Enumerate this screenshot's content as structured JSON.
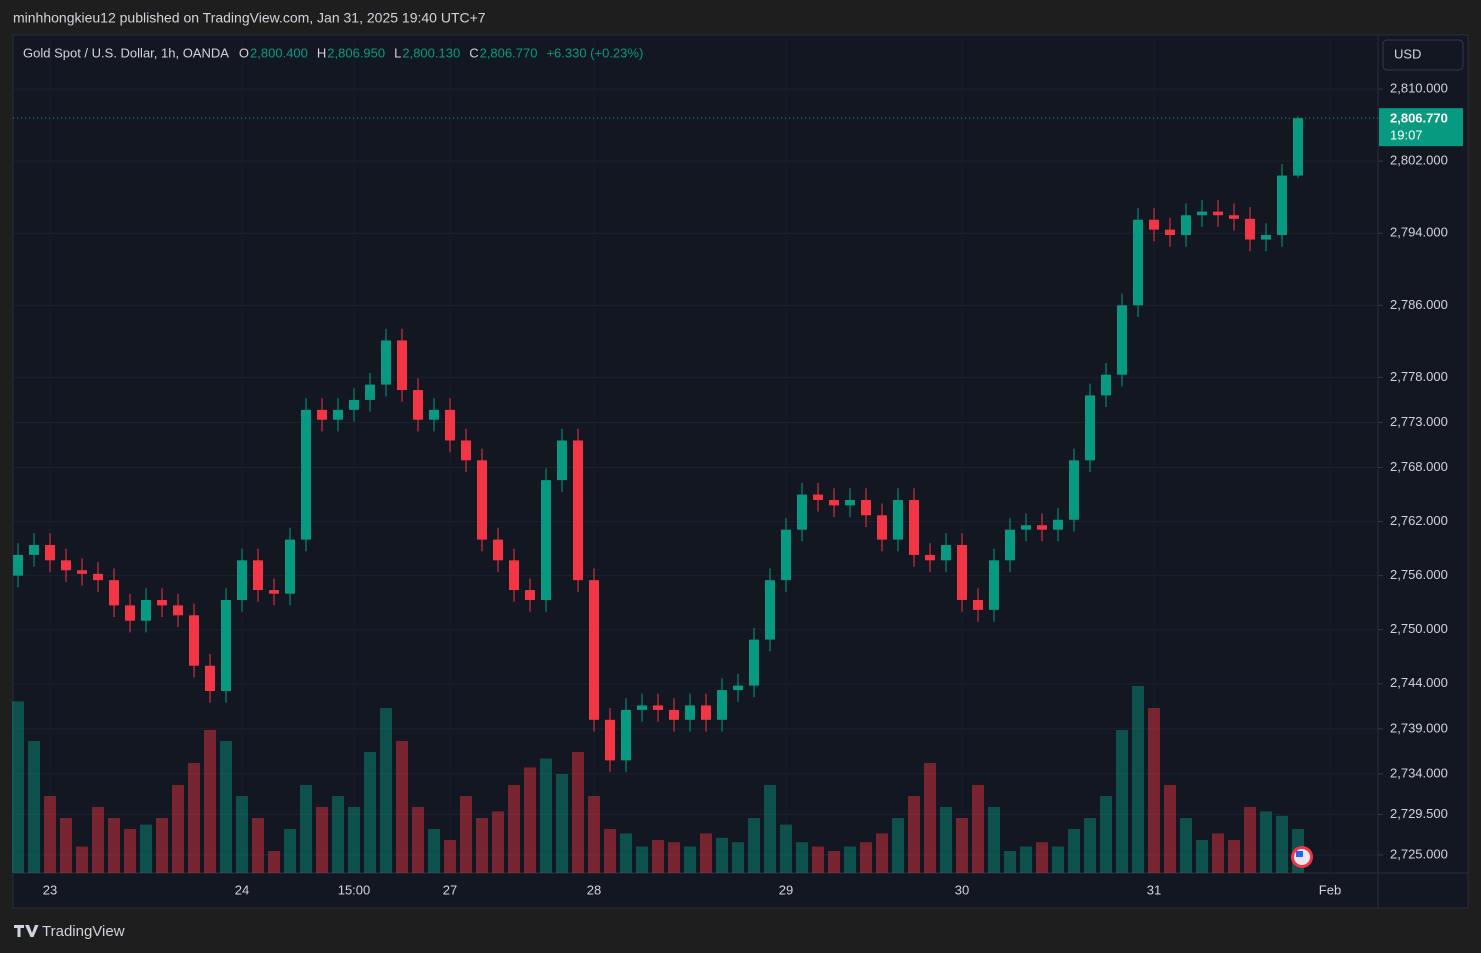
{
  "published_by": "minhhongkieu12 published on TradingView.com, Jan 31, 2025 19:40 UTC+7",
  "brand": "TradingView",
  "chart_data": {
    "type": "candlestick",
    "title": "Gold Spot / U.S. Dollar, 1h, OANDA",
    "ohlc_legend": [
      {
        "key": "O",
        "value": "2,800.400"
      },
      {
        "key": "H",
        "value": "2,806.950"
      },
      {
        "key": "L",
        "value": "2,800.130"
      },
      {
        "key": "C",
        "value": "2,806.770"
      }
    ],
    "change": "+6.330 (+0.23%)",
    "currency": "USD",
    "price_label": "2,806.770",
    "countdown": "19:07",
    "up_color": "#089981",
    "down_color": "#f23645",
    "grid": true,
    "ylim": [
      2723.0,
      2816.0
    ],
    "yticks": [
      {
        "value": 2810,
        "label": "2,810.000"
      },
      {
        "value": 2802,
        "label": "2,802.000"
      },
      {
        "value": 2794,
        "label": "2,794.000"
      },
      {
        "value": 2786,
        "label": "2,786.000"
      },
      {
        "value": 2778,
        "label": "2,778.000"
      },
      {
        "value": 2773,
        "label": "2,773.000"
      },
      {
        "value": 2768,
        "label": "2,768.000"
      },
      {
        "value": 2762,
        "label": "2,762.000"
      },
      {
        "value": 2756,
        "label": "2,756.000"
      },
      {
        "value": 2750,
        "label": "2,750.000"
      },
      {
        "value": 2744,
        "label": "2,744.000"
      },
      {
        "value": 2739,
        "label": "2,739.000"
      },
      {
        "value": 2734,
        "label": "2,734.000"
      },
      {
        "value": 2729.5,
        "label": "2,729.500"
      },
      {
        "value": 2725,
        "label": "2,725.000"
      }
    ],
    "categories": [
      null,
      null,
      "23",
      null,
      null,
      null,
      null,
      null,
      null,
      null,
      null,
      null,
      null,
      null,
      "24",
      null,
      null,
      null,
      null,
      null,
      null,
      "15:00",
      null,
      null,
      null,
      null,
      null,
      "27",
      null,
      null,
      null,
      null,
      null,
      null,
      null,
      null,
      "28",
      null,
      null,
      null,
      null,
      null,
      null,
      null,
      null,
      null,
      null,
      null,
      "29",
      null,
      null,
      null,
      null,
      null,
      null,
      null,
      null,
      null,
      null,
      "30",
      null,
      null,
      null,
      null,
      null,
      null,
      null,
      null,
      null,
      null,
      null,
      "31",
      null,
      null,
      null,
      null,
      null,
      null,
      null,
      null,
      null,
      null,
      "Feb"
    ],
    "open": [
      2756.0,
      2758.3,
      2759.4,
      2757.7,
      2756.6,
      2756.2,
      2755.5,
      2752.7,
      2751.0,
      2753.3,
      2752.7,
      2751.6,
      2746.0,
      2743.2,
      2753.3,
      2757.7,
      2754.4,
      2754.0,
      2760.0,
      2774.4,
      2773.3,
      2774.4,
      2775.5,
      2777.2,
      2782.1,
      2776.6,
      2773.3,
      2774.4,
      2771.0,
      2768.8,
      2760.0,
      2757.7,
      2754.4,
      2753.3,
      2766.6,
      2771.0,
      2755.5,
      2740.0,
      2735.5,
      2741.1,
      2741.6,
      2741.1,
      2740.0,
      2741.6,
      2740.0,
      2743.3,
      2743.8,
      2748.9,
      2755.5,
      2761.1,
      2765.0,
      2764.4,
      2763.8,
      2764.4,
      2762.7,
      2760.0,
      2764.4,
      2758.3,
      2757.7,
      2759.4,
      2753.3,
      2752.2,
      2757.7,
      2761.1,
      2761.6,
      2761.1,
      2762.2,
      2768.8,
      2776.0,
      2778.3,
      2786.0,
      2795.5,
      2794.4,
      2793.8,
      2796.0,
      2796.4,
      2796.0,
      2795.6,
      2793.3,
      2793.8,
      2800.4,
      null,
      null
    ],
    "high": [
      2759.6,
      2760.7,
      2760.7,
      2759.0,
      2757.9,
      2757.5,
      2756.8,
      2754.0,
      2754.6,
      2754.6,
      2754.0,
      2752.9,
      2747.3,
      2754.6,
      2759.0,
      2759.0,
      2755.7,
      2761.3,
      2775.7,
      2775.7,
      2775.7,
      2776.8,
      2778.5,
      2783.4,
      2783.4,
      2777.9,
      2775.7,
      2775.7,
      2772.3,
      2770.1,
      2761.3,
      2759.0,
      2755.7,
      2767.9,
      2772.3,
      2772.3,
      2756.8,
      2741.3,
      2742.4,
      2742.9,
      2742.9,
      2742.4,
      2742.9,
      2742.9,
      2744.6,
      2745.1,
      2750.2,
      2756.8,
      2762.4,
      2766.3,
      2766.3,
      2765.7,
      2765.7,
      2765.7,
      2764.0,
      2765.7,
      2765.7,
      2759.6,
      2760.7,
      2760.7,
      2754.6,
      2759.0,
      2762.4,
      2762.9,
      2762.9,
      2763.5,
      2770.1,
      2777.3,
      2779.6,
      2787.3,
      2796.8,
      2796.8,
      2795.7,
      2797.3,
      2797.7,
      2797.7,
      2797.3,
      2796.9,
      2795.1,
      2801.7,
      2806.95,
      null,
      null
    ],
    "low": [
      2754.7,
      2757.0,
      2756.4,
      2755.3,
      2754.9,
      2754.2,
      2751.4,
      2749.7,
      2749.7,
      2751.4,
      2750.3,
      2744.7,
      2741.9,
      2741.9,
      2752.0,
      2753.1,
      2752.7,
      2752.7,
      2758.7,
      2772.0,
      2772.0,
      2773.1,
      2774.2,
      2775.9,
      2775.3,
      2772.0,
      2772.0,
      2769.7,
      2767.5,
      2758.7,
      2756.4,
      2753.1,
      2752.0,
      2752.0,
      2765.3,
      2754.2,
      2738.7,
      2734.2,
      2734.2,
      2739.8,
      2739.8,
      2738.7,
      2738.7,
      2738.7,
      2738.7,
      2742.0,
      2742.5,
      2747.6,
      2754.2,
      2759.8,
      2763.1,
      2762.5,
      2762.5,
      2761.4,
      2758.7,
      2758.7,
      2757.0,
      2756.4,
      2756.4,
      2752.0,
      2750.9,
      2750.9,
      2756.4,
      2759.8,
      2759.8,
      2759.8,
      2760.9,
      2767.5,
      2774.7,
      2777.0,
      2784.7,
      2793.1,
      2792.5,
      2792.5,
      2794.7,
      2794.7,
      2794.3,
      2792.0,
      2792.0,
      2792.5,
      2800.13,
      null,
      null
    ],
    "close": [
      2758.3,
      2759.4,
      2757.7,
      2756.6,
      2756.2,
      2755.5,
      2752.7,
      2751.0,
      2753.3,
      2752.7,
      2751.6,
      2746.0,
      2743.2,
      2753.3,
      2757.7,
      2754.4,
      2754.0,
      2760.0,
      2774.4,
      2773.3,
      2774.4,
      2775.5,
      2777.2,
      2782.1,
      2776.6,
      2773.3,
      2774.4,
      2771.0,
      2768.8,
      2760.0,
      2757.7,
      2754.4,
      2753.3,
      2766.6,
      2771.0,
      2755.5,
      2740.0,
      2735.5,
      2741.1,
      2741.6,
      2741.1,
      2740.0,
      2741.6,
      2740.0,
      2743.3,
      2743.8,
      2748.9,
      2755.5,
      2761.1,
      2765.0,
      2764.4,
      2763.8,
      2764.4,
      2762.7,
      2760.0,
      2764.4,
      2758.3,
      2757.7,
      2759.4,
      2753.3,
      2752.2,
      2757.7,
      2761.1,
      2761.6,
      2761.1,
      2762.2,
      2768.8,
      2776.0,
      2778.3,
      2786.0,
      2795.5,
      2794.4,
      2793.8,
      2796.0,
      2796.4,
      2796.0,
      2795.6,
      2793.3,
      2793.8,
      2800.4,
      2806.77,
      null,
      null
    ],
    "volume": [
      78,
      60,
      35,
      25,
      12,
      30,
      25,
      20,
      22,
      25,
      40,
      50,
      65,
      60,
      35,
      25,
      10,
      20,
      40,
      30,
      35,
      30,
      55,
      75,
      60,
      30,
      20,
      15,
      35,
      25,
      28,
      40,
      48,
      52,
      45,
      55,
      35,
      20,
      18,
      12,
      15,
      14,
      12,
      18,
      16,
      14,
      25,
      40,
      22,
      14,
      12,
      10,
      12,
      14,
      18,
      25,
      35,
      50,
      30,
      25,
      40,
      30,
      10,
      12,
      14,
      12,
      20,
      25,
      35,
      65,
      85,
      75,
      40,
      25,
      15,
      18,
      15,
      30,
      28,
      26,
      20,
      null,
      null
    ]
  }
}
